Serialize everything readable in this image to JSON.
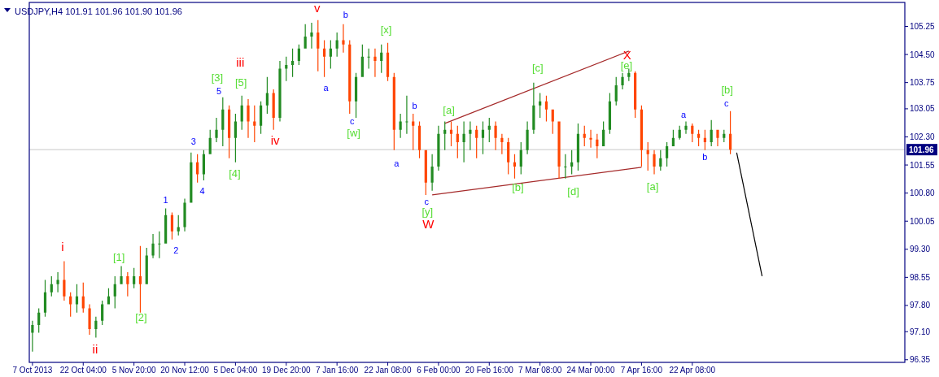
{
  "chart_data": {
    "type": "candlestick",
    "title": "USDJPY,H4  101.91 101.96 101.90 101.96",
    "categories": [
      "7 Oct 2013",
      null,
      null,
      null,
      null,
      null,
      null,
      null,
      "22 Oct 04:00",
      null,
      null,
      null,
      null,
      null,
      null,
      null,
      "5 Nov 20:00",
      null,
      null,
      null,
      null,
      null,
      null,
      null,
      "20 Nov 12:00",
      null,
      null,
      null,
      null,
      null,
      null,
      null,
      "5 Dec 04:00",
      null,
      null,
      null,
      null,
      null,
      null,
      null,
      "19 Dec 20:00",
      null,
      null,
      null,
      null,
      null,
      null,
      null,
      "7 Jan 16:00",
      null,
      null,
      null,
      null,
      null,
      null,
      null,
      "22 Jan 08:00",
      null,
      null,
      null,
      null,
      null,
      null,
      null,
      "6 Feb 00:00",
      null,
      null,
      null,
      null,
      null,
      null,
      null,
      "20 Feb 16:00",
      null,
      null,
      null,
      null,
      null,
      null,
      null,
      "7 Mar 08:00",
      null,
      null,
      null,
      null,
      null,
      null,
      null,
      "24 Mar 00:00",
      null,
      null,
      null,
      null,
      null,
      null,
      null,
      "7 Apr 16:00",
      null,
      null,
      null,
      null,
      null,
      null,
      null,
      "22 Apr 08:00",
      null,
      null,
      null,
      null,
      null,
      null,
      null,
      null,
      null,
      null,
      null,
      null,
      null,
      null,
      null,
      null,
      null,
      null,
      null,
      null,
      null,
      null,
      null,
      null,
      null,
      null,
      null,
      null,
      null,
      null,
      null,
      null,
      null
    ],
    "ohlc": [
      [
        97.07,
        97.39,
        96.57,
        97.28
      ],
      [
        97.28,
        97.72,
        97.07,
        97.61
      ],
      [
        97.61,
        98.48,
        97.5,
        98.15
      ],
      [
        98.15,
        98.58,
        98.04,
        98.37
      ],
      [
        98.37,
        98.69,
        98.15,
        98.48
      ],
      [
        98.48,
        98.98,
        97.93,
        98.04
      ],
      [
        98.04,
        98.15,
        97.5,
        97.83
      ],
      [
        97.83,
        98.37,
        97.61,
        98.04
      ],
      [
        98.04,
        98.41,
        97.61,
        97.72
      ],
      [
        97.72,
        97.83,
        97.02,
        97.17
      ],
      [
        97.17,
        97.5,
        96.94,
        97.39
      ],
      [
        97.39,
        97.93,
        97.28,
        97.83
      ],
      [
        97.83,
        98.26,
        97.83,
        98.04
      ],
      [
        98.04,
        98.58,
        97.72,
        98.37
      ],
      [
        98.37,
        98.85,
        98.37,
        98.58
      ],
      [
        98.58,
        98.69,
        98.04,
        98.37
      ],
      [
        98.37,
        98.8,
        98.26,
        98.58
      ],
      [
        98.58,
        99.39,
        97.61,
        98.37
      ],
      [
        98.37,
        99.34,
        98.37,
        99.13
      ],
      [
        99.13,
        99.71,
        99.06,
        99.45
      ],
      [
        99.45,
        99.78,
        99.06,
        99.45
      ],
      [
        99.45,
        100.39,
        99.45,
        100.21
      ],
      [
        100.21,
        100.28,
        99.56,
        99.78
      ],
      [
        99.78,
        100.21,
        99.67,
        99.89
      ],
      [
        99.89,
        100.65,
        99.78,
        100.54
      ],
      [
        100.54,
        101.88,
        100.54,
        101.62
      ],
      [
        101.62,
        101.84,
        101.08,
        101.3
      ],
      [
        101.3,
        101.95,
        101.14,
        101.84
      ],
      [
        101.84,
        102.49,
        101.84,
        102.27
      ],
      [
        102.27,
        102.81,
        102.16,
        102.49
      ],
      [
        102.49,
        103.36,
        102.05,
        103.03
      ],
      [
        103.03,
        103.14,
        101.73,
        102.27
      ],
      [
        102.27,
        102.92,
        101.62,
        102.71
      ],
      [
        102.71,
        103.4,
        102.49,
        103.14
      ],
      [
        103.14,
        103.31,
        102.27,
        102.71
      ],
      [
        102.71,
        103.14,
        102.16,
        102.6
      ],
      [
        102.6,
        103.25,
        102.38,
        103.14
      ],
      [
        103.14,
        103.9,
        102.92,
        103.47
      ],
      [
        103.47,
        103.57,
        102.49,
        102.81
      ],
      [
        102.81,
        104.33,
        102.71,
        104.12
      ],
      [
        104.12,
        104.44,
        103.79,
        104.22
      ],
      [
        104.22,
        104.66,
        103.9,
        104.33
      ],
      [
        104.33,
        104.77,
        104.22,
        104.66
      ],
      [
        104.66,
        105.31,
        104.66,
        104.98
      ],
      [
        104.98,
        105.35,
        104.66,
        105.09
      ],
      [
        105.09,
        105.42,
        104.05,
        104.66
      ],
      [
        104.66,
        104.88,
        103.9,
        104.44
      ],
      [
        104.44,
        104.88,
        104.12,
        104.66
      ],
      [
        104.66,
        105.09,
        104.44,
        104.88
      ],
      [
        104.88,
        105.31,
        104.55,
        104.77
      ],
      [
        104.77,
        104.88,
        102.92,
        103.25
      ],
      [
        103.25,
        104.01,
        102.81,
        103.9
      ],
      [
        103.9,
        104.77,
        103.9,
        104.44
      ],
      [
        104.44,
        104.66,
        104.12,
        104.44
      ],
      [
        104.44,
        104.66,
        103.9,
        104.33
      ],
      [
        104.33,
        104.77,
        104.01,
        104.55
      ],
      [
        104.55,
        104.81,
        103.79,
        103.9
      ],
      [
        103.9,
        104.01,
        101.95,
        102.49
      ],
      [
        102.49,
        102.92,
        102.27,
        102.71
      ],
      [
        102.71,
        103.4,
        102.38,
        102.71
      ],
      [
        102.71,
        102.92,
        101.95,
        102.6
      ],
      [
        102.6,
        102.71,
        101.73,
        101.95
      ],
      [
        101.95,
        101.95,
        100.75,
        101.08
      ],
      [
        101.08,
        101.84,
        100.86,
        101.51
      ],
      [
        101.51,
        102.6,
        101.4,
        102.38
      ],
      [
        102.38,
        102.71,
        101.95,
        102.49
      ],
      [
        102.49,
        102.71,
        102.05,
        102.38
      ],
      [
        102.38,
        102.6,
        101.73,
        102.16
      ],
      [
        102.16,
        102.71,
        101.62,
        102.38
      ],
      [
        102.38,
        102.71,
        101.95,
        102.49
      ],
      [
        102.49,
        102.6,
        101.73,
        102.27
      ],
      [
        102.27,
        102.71,
        101.84,
        102.49
      ],
      [
        102.49,
        102.81,
        102.16,
        102.6
      ],
      [
        102.6,
        102.71,
        101.95,
        102.27
      ],
      [
        102.27,
        102.38,
        101.84,
        102.16
      ],
      [
        102.16,
        102.27,
        101.3,
        101.62
      ],
      [
        101.62,
        101.84,
        101.19,
        101.51
      ],
      [
        101.51,
        102.16,
        101.3,
        101.95
      ],
      [
        101.95,
        102.71,
        101.84,
        102.49
      ],
      [
        102.49,
        103.75,
        102.38,
        103.14
      ],
      [
        103.14,
        103.47,
        102.81,
        103.25
      ],
      [
        103.25,
        103.4,
        102.71,
        103.03
      ],
      [
        103.03,
        103.03,
        102.38,
        102.71
      ],
      [
        102.71,
        102.71,
        101.19,
        101.51
      ],
      [
        101.51,
        101.84,
        101.19,
        101.51
      ],
      [
        101.51,
        101.95,
        101.3,
        101.62
      ],
      [
        101.62,
        102.66,
        101.4,
        102.38
      ],
      [
        102.38,
        102.6,
        102.05,
        102.27
      ],
      [
        102.27,
        102.49,
        102.01,
        102.23
      ],
      [
        102.23,
        102.38,
        101.73,
        102.05
      ],
      [
        102.05,
        102.71,
        102.05,
        102.49
      ],
      [
        102.49,
        103.47,
        102.38,
        103.25
      ],
      [
        103.25,
        103.9,
        103.14,
        103.68
      ],
      [
        103.68,
        104.01,
        103.57,
        103.9
      ],
      [
        103.9,
        104.12,
        103.79,
        104.01
      ],
      [
        104.01,
        104.05,
        102.81,
        103.03
      ],
      [
        103.03,
        103.14,
        101.51,
        101.95
      ],
      [
        101.95,
        102.16,
        101.4,
        101.84
      ],
      [
        101.84,
        101.95,
        101.3,
        101.51
      ],
      [
        101.51,
        101.95,
        101.4,
        101.73
      ],
      [
        101.73,
        102.16,
        101.51,
        102.05
      ],
      [
        102.05,
        102.49,
        102.05,
        102.27
      ],
      [
        102.27,
        102.6,
        102.23,
        102.49
      ],
      [
        102.49,
        102.71,
        102.38,
        102.6
      ],
      [
        102.6,
        102.66,
        102.16,
        102.38
      ],
      [
        102.38,
        102.49,
        102.05,
        102.27
      ],
      [
        102.27,
        102.49,
        101.95,
        102.16
      ],
      [
        102.16,
        102.75,
        102.05,
        102.49
      ],
      [
        102.49,
        102.49,
        102.05,
        102.27
      ],
      [
        102.27,
        102.49,
        102.16,
        102.38
      ],
      [
        102.38,
        102.99,
        101.84,
        101.96
      ],
      null,
      null,
      null,
      null,
      null,
      null,
      null,
      null,
      null,
      null,
      null,
      null,
      null,
      null,
      null,
      null,
      null,
      null,
      null,
      null,
      null,
      null,
      null,
      null,
      null,
      null,
      null
    ],
    "colors": [
      "#228b22",
      "#228b22",
      "#228b22",
      "#228b22",
      "#228b22",
      "#ff4500",
      "#ff4500",
      "#228b22",
      "#ff4500",
      "#ff4500",
      "#228b22",
      "#228b22",
      "#228b22",
      "#228b22",
      "#228b22",
      "#ff4500",
      "#228b22",
      "#ff4500",
      "#228b22",
      "#228b22",
      "#228b22",
      "#228b22",
      "#ff4500",
      "#228b22",
      "#228b22",
      "#228b22",
      "#ff4500",
      "#228b22",
      "#228b22",
      "#228b22",
      "#228b22",
      "#ff4500",
      "#228b22",
      "#228b22",
      "#ff4500",
      "#ff4500",
      "#228b22",
      "#228b22",
      "#ff4500",
      "#228b22",
      "#228b22",
      "#228b22",
      "#228b22",
      "#228b22",
      "#228b22",
      "#ff4500",
      "#ff4500",
      "#228b22",
      "#228b22",
      "#ff4500",
      "#ff4500",
      "#228b22",
      "#228b22",
      "#228b22",
      "#ff4500",
      "#228b22",
      "#ff4500",
      "#ff4500",
      "#228b22",
      "#228b22",
      "#ff4500",
      "#ff4500",
      "#ff4500",
      "#228b22",
      "#228b22",
      "#228b22",
      "#ff4500",
      "#ff4500",
      "#228b22",
      "#228b22",
      "#ff4500",
      "#228b22",
      "#228b22",
      "#ff4500",
      "#ff4500",
      "#ff4500",
      "#ff4500",
      "#228b22",
      "#228b22",
      "#228b22",
      "#228b22",
      "#ff4500",
      "#ff4500",
      "#ff4500",
      "#228b22",
      "#228b22",
      "#228b22",
      "#ff4500",
      "#ff4500",
      "#ff4500",
      "#228b22",
      "#228b22",
      "#228b22",
      "#228b22",
      "#228b22",
      "#ff4500",
      "#ff4500",
      "#ff4500",
      "#ff4500",
      "#228b22",
      "#228b22",
      "#228b22",
      "#228b22",
      "#228b22",
      "#ff4500",
      "#ff4500",
      "#ff4500",
      "#228b22",
      "#ff4500",
      "#228b22",
      "#ff4500",
      null,
      null,
      null,
      null,
      null,
      null,
      null,
      null,
      null,
      null,
      null,
      null,
      null,
      null,
      null,
      null,
      null,
      null,
      null,
      null,
      null,
      null,
      null,
      null,
      null,
      null,
      null
    ],
    "series": [
      {
        "type": "line",
        "color": "#a52a2a",
        "values": [
          null,
          null,
          null,
          null,
          null,
          null,
          null,
          null,
          null,
          null,
          null,
          null,
          null,
          null,
          null,
          null,
          null,
          null,
          null,
          null,
          null,
          null,
          null,
          null,
          null,
          null,
          null,
          null,
          null,
          null,
          null,
          null,
          null,
          null,
          null,
          null,
          null,
          null,
          null,
          null,
          null,
          null,
          null,
          null,
          null,
          null,
          null,
          null,
          null,
          null,
          null,
          null,
          null,
          null,
          null,
          null,
          null,
          null,
          null,
          null,
          null,
          null,
          null,
          null,
          null,
          102.66,
          null,
          null,
          null,
          null,
          null,
          null,
          null,
          null,
          null,
          null,
          null,
          null,
          null,
          null,
          null,
          null,
          null,
          null,
          null,
          null,
          null,
          null,
          null,
          null,
          null,
          null,
          null,
          null,
          104.59,
          null,
          null,
          null,
          null,
          null,
          null,
          null,
          null,
          null,
          null,
          null,
          null,
          null,
          null,
          null,
          null,
          null,
          null,
          null,
          null,
          null,
          null,
          null,
          null,
          null,
          null,
          null,
          null,
          null,
          null,
          null,
          null,
          null,
          null,
          null,
          null,
          null,
          null,
          null,
          null,
          null,
          null,
          null
        ]
      },
      {
        "type": "line",
        "color": "#a52a2a",
        "values": [
          null,
          null,
          null,
          null,
          null,
          null,
          null,
          null,
          null,
          null,
          null,
          null,
          null,
          null,
          null,
          null,
          null,
          null,
          null,
          null,
          null,
          null,
          null,
          null,
          null,
          null,
          null,
          null,
          null,
          null,
          null,
          null,
          null,
          null,
          null,
          null,
          null,
          null,
          null,
          null,
          null,
          null,
          null,
          null,
          null,
          null,
          null,
          null,
          null,
          null,
          null,
          null,
          null,
          null,
          null,
          null,
          null,
          null,
          null,
          null,
          null,
          null,
          null,
          100.75,
          null,
          null,
          null,
          null,
          null,
          null,
          null,
          null,
          null,
          null,
          null,
          null,
          null,
          null,
          null,
          null,
          null,
          null,
          null,
          null,
          null,
          null,
          null,
          null,
          null,
          null,
          null,
          null,
          null,
          null,
          null,
          null,
          101.49,
          null,
          null,
          null,
          null,
          null,
          null,
          null,
          null,
          null,
          null,
          null,
          null,
          null,
          null,
          null,
          null,
          null,
          null,
          null,
          null,
          null,
          null,
          null,
          null,
          null,
          null,
          null,
          null,
          null,
          null,
          null,
          null,
          null,
          null,
          null,
          null,
          null,
          null,
          null,
          null,
          null
        ]
      },
      {
        "type": "line",
        "color": "#000000",
        "values": [
          null,
          null,
          null,
          null,
          null,
          null,
          null,
          null,
          null,
          null,
          null,
          null,
          null,
          null,
          null,
          null,
          null,
          null,
          null,
          null,
          null,
          null,
          null,
          null,
          null,
          null,
          null,
          null,
          null,
          null,
          null,
          null,
          null,
          null,
          null,
          null,
          null,
          null,
          null,
          null,
          null,
          null,
          null,
          null,
          null,
          null,
          null,
          null,
          null,
          null,
          null,
          null,
          null,
          null,
          null,
          null,
          null,
          null,
          null,
          null,
          null,
          null,
          null,
          null,
          null,
          null,
          null,
          null,
          null,
          null,
          null,
          null,
          null,
          null,
          null,
          null,
          null,
          null,
          null,
          null,
          null,
          null,
          null,
          null,
          null,
          null,
          null,
          null,
          null,
          null,
          null,
          null,
          null,
          null,
          null,
          null,
          null,
          null,
          null,
          null,
          null,
          null,
          null,
          null,
          null,
          null,
          null,
          null,
          null,
          null,
          null,
          101.88,
          null,
          null,
          null,
          98.58,
          null,
          null,
          null,
          null,
          null,
          null,
          null,
          null,
          null,
          null,
          null,
          null,
          null,
          null,
          null,
          null,
          null,
          null,
          null,
          null,
          null,
          null
        ]
      }
    ],
    "ylim": [
      96.28,
      105.89
    ],
    "yticks": [
      96.35,
      {
        "value": 97.1,
        "label": "97.10"
      },
      {
        "value": 97.8,
        "label": "97.80"
      },
      98.55,
      {
        "value": 99.3,
        "label": "99.30"
      },
      100.05,
      {
        "value": 100.8,
        "label": "100.80"
      },
      101.55,
      {
        "value": 102.3,
        "label": "102.30"
      },
      103.05,
      103.75,
      {
        "value": 104.5,
        "label": "104.50"
      },
      105.25
    ],
    "ref_lines": [
      {
        "axis": "y",
        "value": 101.96,
        "label": "101.96",
        "color": "#c8c8c8"
      }
    ],
    "line_style": "solid",
    "annotations": [
      "i",
      "ii",
      "iii",
      "iv",
      "v",
      "W",
      "X",
      "[1]",
      "[2]",
      "[3]",
      "[4]",
      "[5]",
      "[w]",
      "[x]",
      "[y]",
      "[a]",
      "[b]",
      "[c]",
      "[d]",
      "[e]",
      "[a]",
      "[b]",
      "1",
      "2",
      "3",
      "4",
      "5",
      "a",
      "b",
      "c",
      "a",
      "b",
      "c",
      "a",
      "b",
      "c"
    ]
  }
}
